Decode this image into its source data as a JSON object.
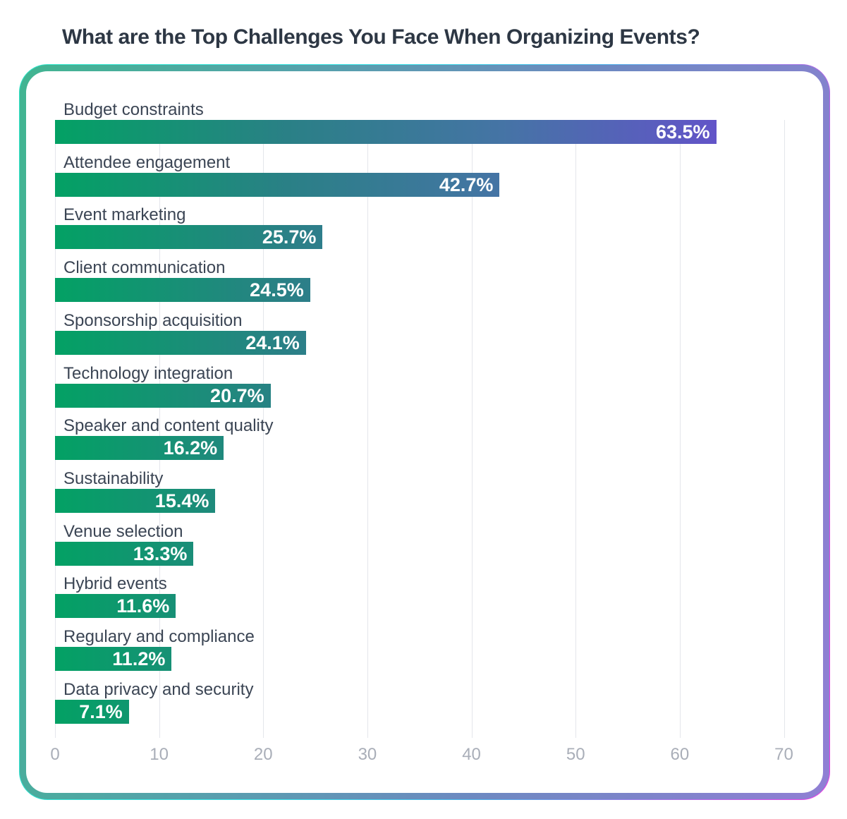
{
  "title": "What are the Top Challenges You Face When Organizing Events?",
  "chart_data": {
    "type": "bar",
    "orientation": "horizontal",
    "title": "What are the Top Challenges You Face When Organizing Events?",
    "categories": [
      "Budget constraints",
      "Attendee engagement",
      "Event marketing",
      "Client communication",
      "Sponsorship acquisition",
      "Technology integration",
      "Speaker and content quality",
      "Sustainability",
      "Venue selection",
      "Hybrid events",
      "Regulary and compliance",
      "Data privacy and security"
    ],
    "values": [
      63.5,
      42.7,
      25.7,
      24.5,
      24.1,
      20.7,
      16.2,
      15.4,
      13.3,
      11.6,
      11.2,
      7.1
    ],
    "value_labels": [
      "63.5%",
      "42.7%",
      "25.7%",
      "24.5%",
      "24.1%",
      "20.7%",
      "16.2%",
      "15.4%",
      "13.3%",
      "11.6%",
      "11.2%",
      "7.1%"
    ],
    "xlabel": "",
    "ylabel": "",
    "xlim": [
      0,
      70
    ],
    "x_ticks": [
      0,
      10,
      20,
      30,
      40,
      50,
      60,
      70
    ],
    "grid": "vertical",
    "legend": "none"
  },
  "colors": {
    "page_background": "#ffffff",
    "card_background": "#ffffff",
    "title_text": "#2d3744",
    "category_text": "#3b4554",
    "value_text": "#ffffff",
    "axis_text": "#a9aeb8",
    "gridline": "#e4e6eb",
    "bar_gradient": [
      "#03a164",
      "#2a8086",
      "#4574a5",
      "#6254c8"
    ],
    "border_gradient": [
      "#41b591",
      "#55a2ab",
      "#6d89c1",
      "#907fd4"
    ],
    "hairline_gradient": [
      "#2ce4c6",
      "#35e0e6",
      "#49b0e8",
      "#ee3be4"
    ]
  }
}
